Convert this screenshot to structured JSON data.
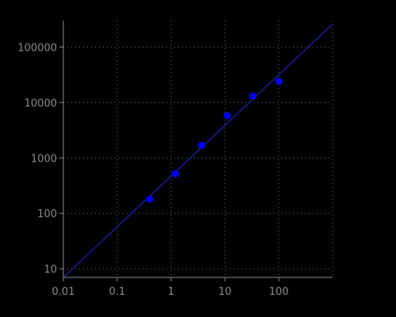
{
  "chart_data": {
    "type": "scatter",
    "title": "",
    "xlabel": "",
    "ylabel": "",
    "x_scale": "log",
    "y_scale": "log",
    "xlim": [
      0.01,
      1000
    ],
    "ylim": [
      7,
      300000
    ],
    "grid": true,
    "x_ticks": [
      {
        "value": 0.01,
        "label": "0.01"
      },
      {
        "value": 0.1,
        "label": "0.1"
      },
      {
        "value": 1,
        "label": "1"
      },
      {
        "value": 10,
        "label": "10"
      },
      {
        "value": 100,
        "label": "100"
      }
    ],
    "y_ticks": [
      {
        "value": 10,
        "label": "10"
      },
      {
        "value": 100,
        "label": "100"
      },
      {
        "value": 1000,
        "label": "1000"
      },
      {
        "value": 10000,
        "label": "10000"
      },
      {
        "value": 100000,
        "label": "100000"
      }
    ],
    "series": [
      {
        "kind": "points",
        "color": "#0000ff",
        "x": [
          0.4,
          1.2,
          3.7,
          11,
          33,
          100
        ],
        "y": [
          180,
          520,
          1700,
          5800,
          13000,
          24000
        ]
      },
      {
        "kind": "fit-line",
        "color": "#1a1a9e",
        "x": [
          0.01,
          1000
        ],
        "y": [
          7,
          260000
        ]
      }
    ]
  }
}
